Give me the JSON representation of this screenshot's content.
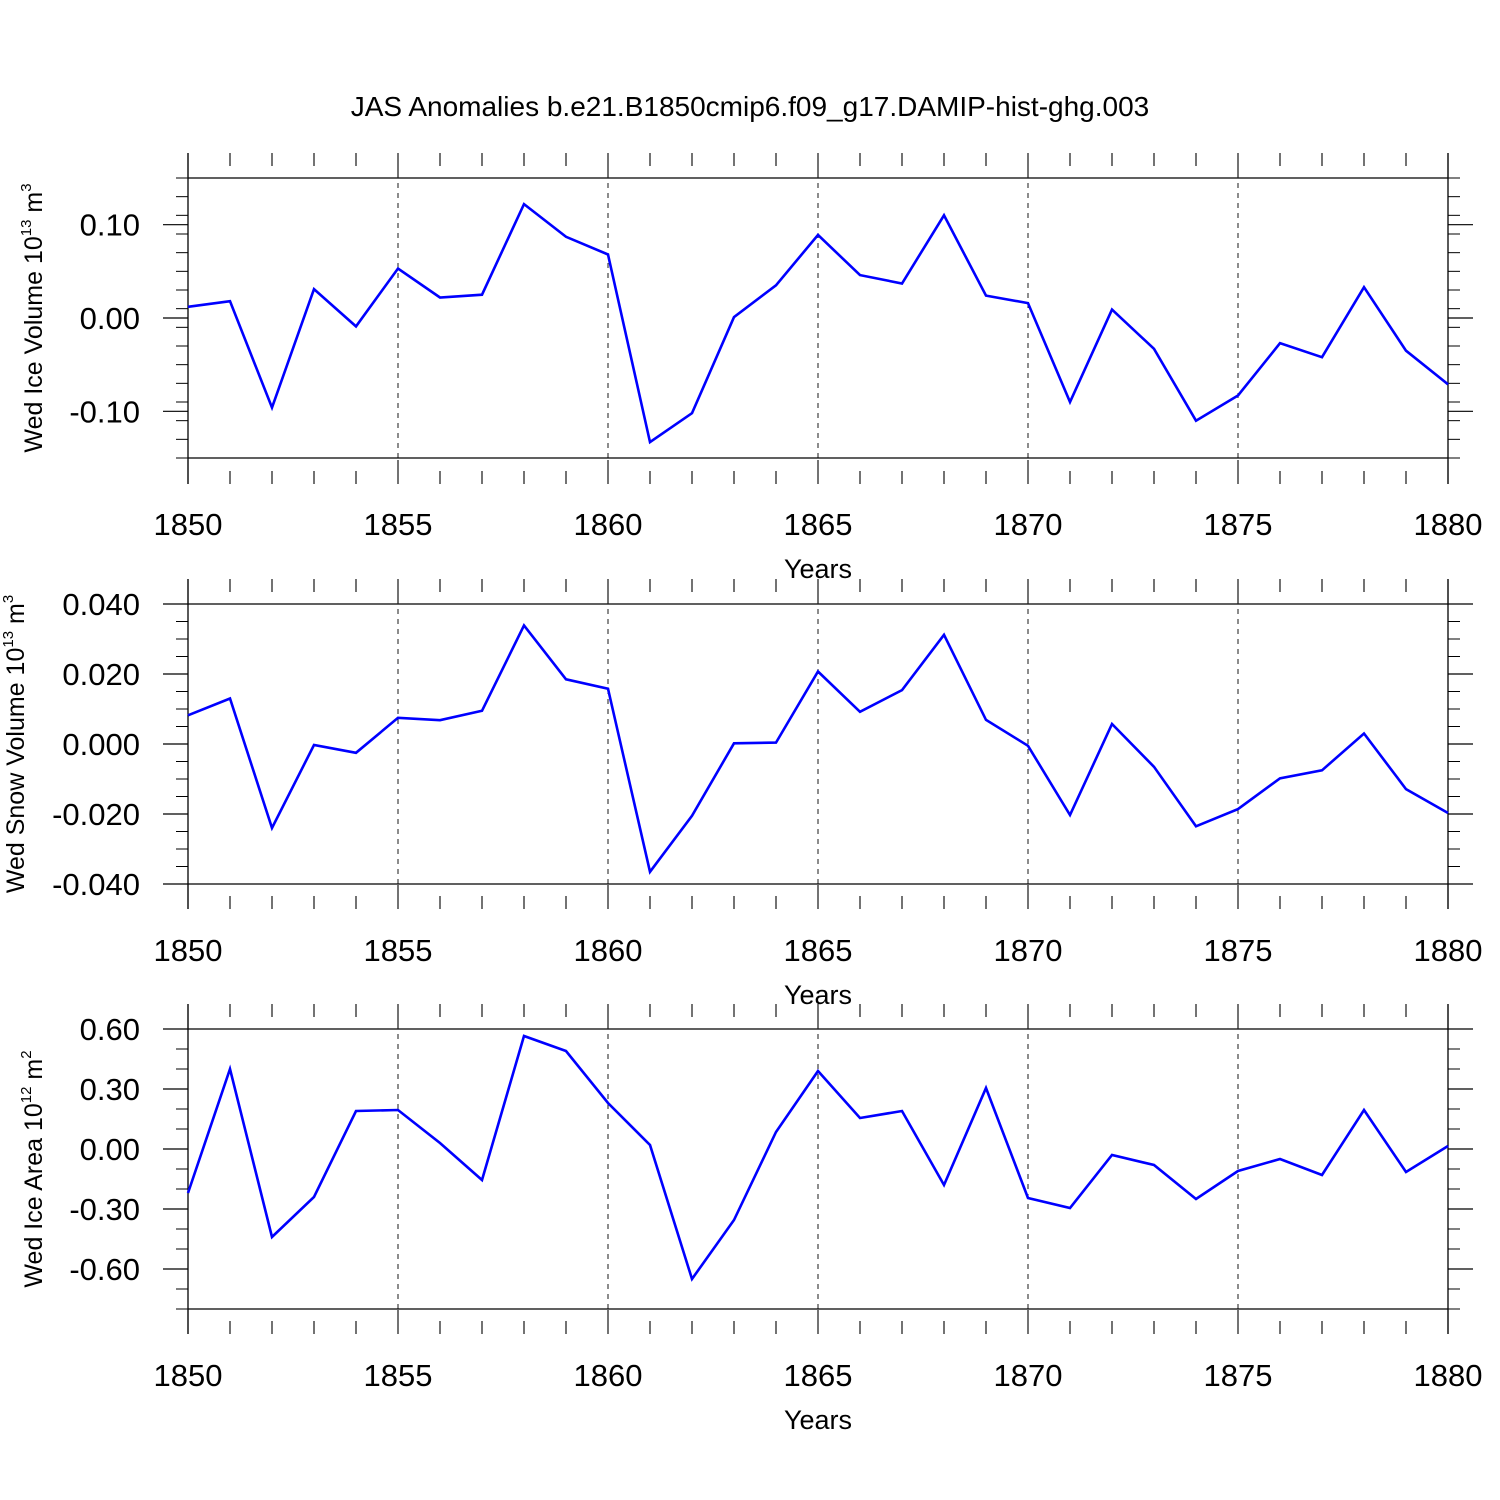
{
  "chart_data": {
    "title": "JAS Anomalies b.e21.B1850cmip6.f09_g17.DAMIP-hist-ghg.003",
    "type": "line",
    "panels": [
      {
        "type": "line",
        "ylabel_main": "Wed Ice Volume 10",
        "ylabel_exp": "13",
        "ylabel_unit": "m",
        "ylabel_unit_exp": "3",
        "xlabel": "Years",
        "xlim": [
          1850,
          1880
        ],
        "ylim": [
          -0.15,
          0.15
        ],
        "grid": "dashed vertical at major x ticks",
        "xticks": [
          "1850",
          "1855",
          "1860",
          "1865",
          "1870",
          "1875",
          "1880"
        ],
        "yticks": [
          {
            "v": 0.1,
            "label": "0.10"
          },
          {
            "v": 0.0,
            "label": "0.00"
          },
          {
            "v": -0.1,
            "label": "-0.10"
          }
        ],
        "y_minor_step": 0.02,
        "color": "#0000ff",
        "x": [
          1850,
          1851,
          1852,
          1853,
          1854,
          1855,
          1856,
          1857,
          1858,
          1859,
          1860,
          1861,
          1862,
          1863,
          1864,
          1865,
          1866,
          1867,
          1868,
          1869,
          1870,
          1871,
          1872,
          1873,
          1874,
          1875,
          1876,
          1877,
          1878,
          1879,
          1880
        ],
        "values": [
          0.012,
          0.018,
          -0.096,
          0.031,
          -0.009,
          0.053,
          0.022,
          0.025,
          0.122,
          0.087,
          0.068,
          -0.133,
          -0.102,
          0.001,
          0.035,
          0.089,
          0.046,
          0.037,
          0.11,
          0.024,
          0.016,
          -0.09,
          0.009,
          -0.033,
          -0.11,
          -0.083,
          -0.027,
          -0.042,
          0.033,
          -0.035,
          -0.071
        ]
      },
      {
        "type": "line",
        "ylabel_main": "Wed Snow Volume 10",
        "ylabel_exp": "13",
        "ylabel_unit": "m",
        "ylabel_unit_exp": "3",
        "xlabel": "Years",
        "xlim": [
          1850,
          1880
        ],
        "ylim": [
          -0.04,
          0.04
        ],
        "grid": "dashed vertical at major x ticks",
        "xticks": [
          "1850",
          "1855",
          "1860",
          "1865",
          "1870",
          "1875",
          "1880"
        ],
        "yticks": [
          {
            "v": 0.04,
            "label": "0.040"
          },
          {
            "v": 0.02,
            "label": "0.020"
          },
          {
            "v": 0.0,
            "label": "0.000"
          },
          {
            "v": -0.02,
            "label": "-0.020"
          },
          {
            "v": -0.04,
            "label": "-0.040"
          }
        ],
        "y_minor_step": 0.005,
        "color": "#0000ff",
        "x": [
          1850,
          1851,
          1852,
          1853,
          1854,
          1855,
          1856,
          1857,
          1858,
          1859,
          1860,
          1861,
          1862,
          1863,
          1864,
          1865,
          1866,
          1867,
          1868,
          1869,
          1870,
          1871,
          1872,
          1873,
          1874,
          1875,
          1876,
          1877,
          1878,
          1879,
          1880
        ],
        "values": [
          0.0082,
          0.013,
          -0.024,
          -0.0003,
          -0.0025,
          0.0075,
          0.0068,
          0.0095,
          0.0339,
          0.0185,
          0.0158,
          -0.0365,
          -0.0205,
          0.0002,
          0.0004,
          0.0207,
          0.0092,
          0.0154,
          0.0312,
          0.0069,
          -0.0005,
          -0.0203,
          0.0057,
          -0.0065,
          -0.0235,
          -0.0186,
          -0.0098,
          -0.0075,
          0.003,
          -0.0129,
          -0.0197
        ]
      },
      {
        "type": "line",
        "ylabel_main": "Wed Ice Area 10",
        "ylabel_exp": "12",
        "ylabel_unit": "m",
        "ylabel_unit_exp": "2",
        "xlabel": "Years",
        "xlim": [
          1850,
          1880
        ],
        "ylim": [
          -0.8,
          0.6
        ],
        "grid": "dashed vertical at major x ticks",
        "xticks": [
          "1850",
          "1855",
          "1860",
          "1865",
          "1870",
          "1875",
          "1880"
        ],
        "yticks": [
          {
            "v": 0.6,
            "label": "0.60"
          },
          {
            "v": 0.3,
            "label": "0.30"
          },
          {
            "v": 0.0,
            "label": "0.00"
          },
          {
            "v": -0.3,
            "label": "-0.30"
          },
          {
            "v": -0.6,
            "label": "-0.60"
          }
        ],
        "y_minor_step": 0.1,
        "color": "#0000ff",
        "x": [
          1850,
          1851,
          1852,
          1853,
          1854,
          1855,
          1856,
          1857,
          1858,
          1859,
          1860,
          1861,
          1862,
          1863,
          1864,
          1865,
          1866,
          1867,
          1868,
          1869,
          1870,
          1871,
          1872,
          1873,
          1874,
          1875,
          1876,
          1877,
          1878,
          1879,
          1880
        ],
        "values": [
          -0.22,
          0.4,
          -0.44,
          -0.24,
          0.19,
          0.195,
          0.03,
          -0.155,
          0.565,
          0.49,
          0.23,
          0.02,
          -0.65,
          -0.355,
          0.085,
          0.39,
          0.155,
          0.19,
          -0.18,
          0.305,
          -0.245,
          -0.295,
          -0.03,
          -0.08,
          -0.25,
          -0.11,
          -0.05,
          -0.13,
          0.195,
          -0.115,
          0.015
        ]
      }
    ]
  }
}
